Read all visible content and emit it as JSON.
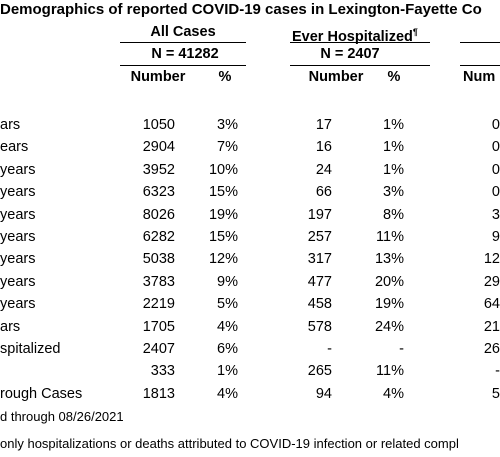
{
  "title": "Demographics of reported COVID-19 cases in Lexington-Fayette Co",
  "groups": [
    {
      "label": "All Cases",
      "n": "N = 41282",
      "col1": "Number",
      "col2": "%"
    },
    {
      "label": "Ever Hospitalized",
      "mark": "¶",
      "n": "N = 2407",
      "col1": "Number",
      "col2": "%"
    },
    {
      "col1": "Num"
    }
  ],
  "rows": [
    {
      "label": "ars",
      "cells": [
        "1050",
        "3%",
        "17",
        "1%",
        "0"
      ]
    },
    {
      "label": "ears",
      "cells": [
        "2904",
        "7%",
        "16",
        "1%",
        "0"
      ]
    },
    {
      "label": "years",
      "cells": [
        "3952",
        "10%",
        "24",
        "1%",
        "0"
      ]
    },
    {
      "label": "years",
      "cells": [
        "6323",
        "15%",
        "66",
        "3%",
        "0"
      ]
    },
    {
      "label": "years",
      "cells": [
        "8026",
        "19%",
        "197",
        "8%",
        "3"
      ]
    },
    {
      "label": "years",
      "cells": [
        "6282",
        "15%",
        "257",
        "11%",
        "9"
      ]
    },
    {
      "label": "years",
      "cells": [
        "5038",
        "12%",
        "317",
        "13%",
        "12"
      ]
    },
    {
      "label": "years",
      "cells": [
        "3783",
        "9%",
        "477",
        "20%",
        "29"
      ]
    },
    {
      "label": "years",
      "cells": [
        "2219",
        "5%",
        "458",
        "19%",
        "64"
      ]
    },
    {
      "label": "ars",
      "cells": [
        "1705",
        "4%",
        "578",
        "24%",
        "21"
      ]
    },
    {
      "label": "spitalized",
      "cells": [
        "2407",
        "6%",
        "-",
        "-",
        "26"
      ]
    },
    {
      "cells": [
        "333",
        "1%",
        "265",
        "11%",
        "-"
      ]
    },
    {
      "label": "rough Cases",
      "cells": [
        "1813",
        "4%",
        "94",
        "4%",
        "5"
      ]
    }
  ],
  "footnotes": [
    "d through 08/26/2021",
    "only hospitalizations or deaths attributed to COVID-19 infection or related compl"
  ]
}
